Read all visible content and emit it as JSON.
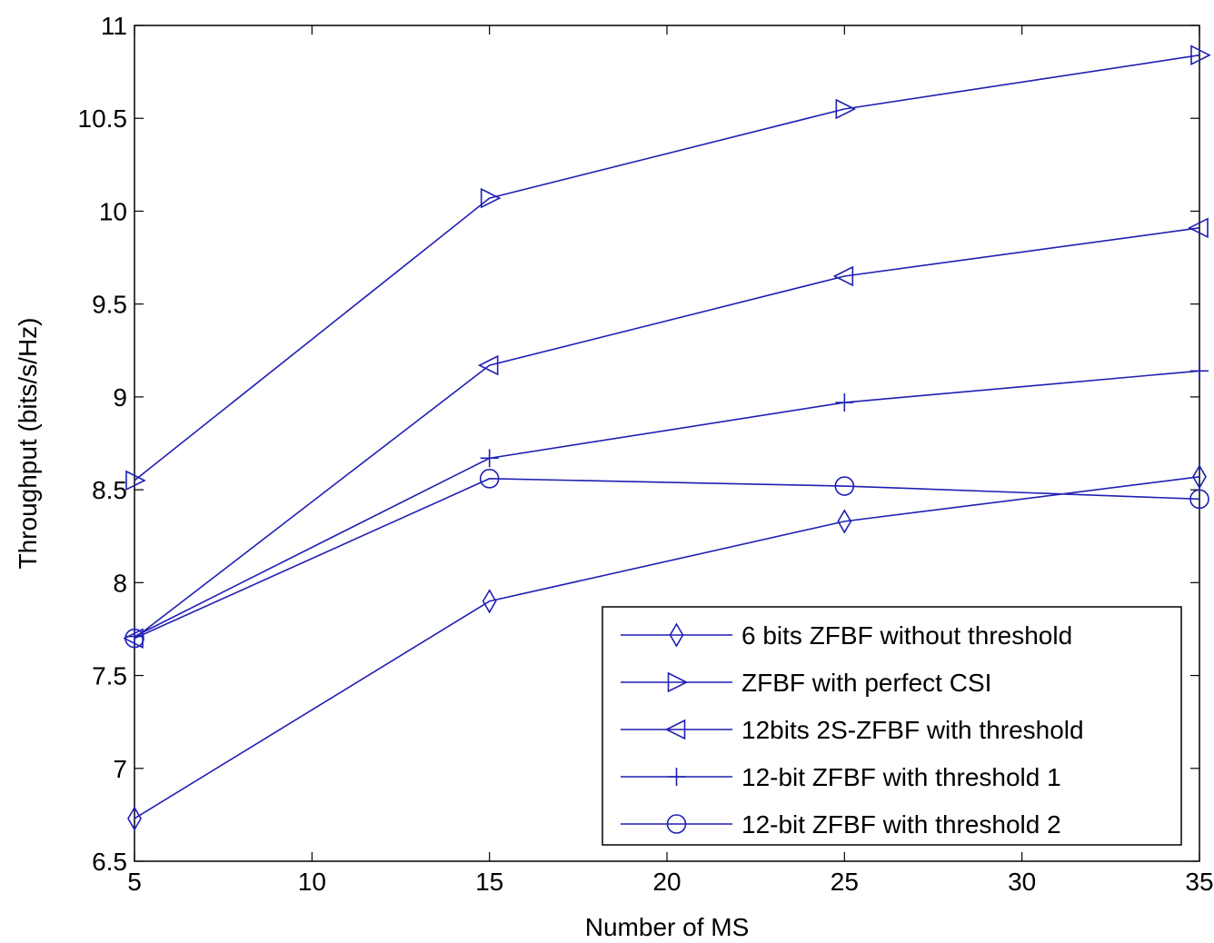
{
  "chart_data": {
    "type": "line",
    "title": "",
    "xlabel": "Number of MS",
    "ylabel": "Throughput (bits/s/Hz)",
    "xlim": [
      5,
      35
    ],
    "ylim": [
      6.5,
      11
    ],
    "xticks": [
      5,
      10,
      15,
      20,
      25,
      30,
      35
    ],
    "yticks": [
      6.5,
      7,
      7.5,
      8,
      8.5,
      9,
      9.5,
      10,
      10.5,
      11
    ],
    "ytick_labels": [
      "6.5",
      "7",
      "7.5",
      "8",
      "8.5",
      "9",
      "9.5",
      "10",
      "10.5",
      "11"
    ],
    "grid": false,
    "legend_position": "bottom-right",
    "line_color": "#1f1fb4",
    "x": [
      5,
      15,
      25,
      35
    ],
    "series": [
      {
        "name": "6 bits ZFBF without threshold",
        "marker": "diamond",
        "values": [
          6.73,
          7.9,
          8.33,
          8.57
        ]
      },
      {
        "name": "ZFBF with perfect CSI",
        "marker": "triangle-right",
        "values": [
          8.55,
          10.07,
          10.55,
          10.84
        ]
      },
      {
        "name": "12bits 2S-ZFBF with threshold",
        "marker": "triangle-left",
        "values": [
          7.7,
          9.17,
          9.65,
          9.91
        ]
      },
      {
        "name": "12-bit ZFBF with threshold 1",
        "marker": "plus",
        "values": [
          7.71,
          8.67,
          8.97,
          9.14
        ]
      },
      {
        "name": "12-bit ZFBF with threshold 2",
        "marker": "circle",
        "values": [
          7.7,
          8.56,
          8.52,
          8.45
        ]
      }
    ]
  }
}
